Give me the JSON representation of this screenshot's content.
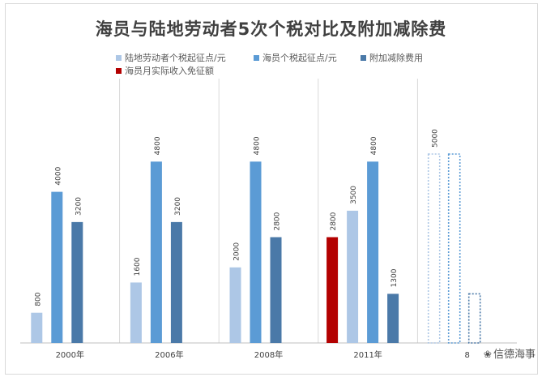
{
  "chart_data": {
    "type": "bar",
    "title": "海员与陆地劳动者5次个税对比及附加减除费",
    "categories": [
      "2000年",
      "2006年",
      "2008年",
      "2011年",
      "8"
    ],
    "series": [
      {
        "name": "陆地劳动者个税起征点/元",
        "color": "#adc7e6",
        "values": [
          800,
          1600,
          2000,
          3500,
          5000
        ]
      },
      {
        "name": "海员个税起征点/元",
        "color": "#5b9bd5",
        "values": [
          4000,
          4800,
          4800,
          4800,
          5000
        ]
      },
      {
        "name": "附加减除费用",
        "color": "#4a79a8",
        "values": [
          3200,
          3200,
          2800,
          1300,
          1300
        ]
      },
      {
        "name": "海员月实际收入免征额",
        "color": "#b30000",
        "values": [
          null,
          null,
          null,
          2800,
          null
        ]
      }
    ],
    "data_labels": [
      [
        "800",
        "4000",
        "3200",
        null
      ],
      [
        "1600",
        "4800",
        "3200",
        null
      ],
      [
        "2000",
        "4800",
        "2800",
        null
      ],
      [
        "3500",
        "4800",
        "1300",
        "2800"
      ],
      [
        "5000",
        null,
        null,
        null
      ]
    ],
    "ylim": [
      0,
      6000
    ],
    "grid": false,
    "legend_position": "top",
    "last_category_style": "dotted-outline"
  },
  "watermark": {
    "icon": "wechat-icon",
    "text": "信德海事"
  }
}
